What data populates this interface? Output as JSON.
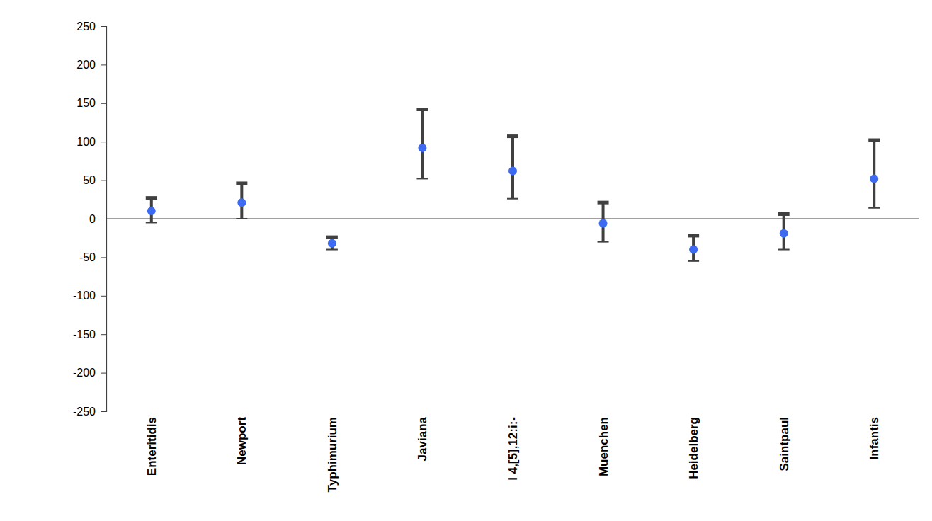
{
  "chart_data": {
    "type": "point",
    "categories": [
      "Enteritidis",
      "Newport",
      "Typhimurium",
      "Javiana",
      "I 4,[5],12:i:-",
      "Muenchen",
      "Heidelberg",
      "Saintpaul",
      "Infantis"
    ],
    "values": [
      10,
      21,
      -32,
      92,
      62,
      -6,
      -40,
      -19,
      52
    ],
    "lower": [
      -5,
      0,
      -40,
      52,
      26,
      -30,
      -55,
      -40,
      14
    ],
    "upper": [
      27,
      46,
      -24,
      142,
      107,
      21,
      -22,
      6,
      102
    ],
    "color": "#3c6af0",
    "marker": "circle",
    "ylim": [
      -250,
      250
    ],
    "yticks": [
      -250,
      -200,
      -150,
      -100,
      -50,
      0,
      50,
      100,
      150,
      200,
      250
    ],
    "grid": false
  }
}
